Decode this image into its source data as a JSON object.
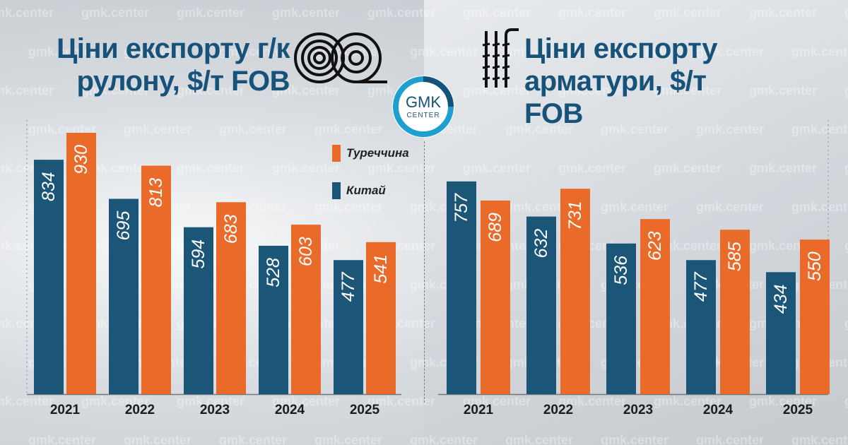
{
  "watermark_text": "gmk.center",
  "logo": {
    "line1": "GMK",
    "line2": "CENTER"
  },
  "colors": {
    "china": "#1b5578",
    "turkey": "#ea6a2a",
    "title": "#17527a"
  },
  "icons": {
    "left_title_icon": "steel-coil-icon",
    "right_title_icon": "rebar-icon"
  },
  "chart_data": [
    {
      "type": "bar",
      "title": "Ціни експорту г/к рулону, $/т FOB",
      "categories": [
        "2021",
        "2022",
        "2023",
        "2024",
        "2025"
      ],
      "series": [
        {
          "name": "Китай",
          "values": [
            834,
            695,
            594,
            528,
            477
          ]
        },
        {
          "name": "Туреччина",
          "values": [
            930,
            813,
            683,
            603,
            541
          ]
        }
      ],
      "ylim": [
        0,
        960
      ],
      "grid": false
    },
    {
      "type": "bar",
      "title": "Ціни експорту арматури, $/т FOB",
      "categories": [
        "2021",
        "2022",
        "2023",
        "2024",
        "2025"
      ],
      "series": [
        {
          "name": "Китай",
          "values": [
            757,
            632,
            536,
            477,
            434
          ]
        },
        {
          "name": "Туреччина",
          "values": [
            689,
            731,
            623,
            585,
            550
          ]
        }
      ],
      "ylim": [
        0,
        960
      ],
      "grid": false
    }
  ],
  "legend": {
    "position": "center",
    "items": [
      {
        "label": "Туреччина",
        "series": "turkey"
      },
      {
        "label": "Китай",
        "series": "china"
      }
    ]
  },
  "titles": {
    "left_line1": "Ціни експорту г/к",
    "left_line2": "рулону, $/т FOB",
    "right_line1": "Ціни експорту",
    "right_line2": "арматури, $/т FOB"
  }
}
